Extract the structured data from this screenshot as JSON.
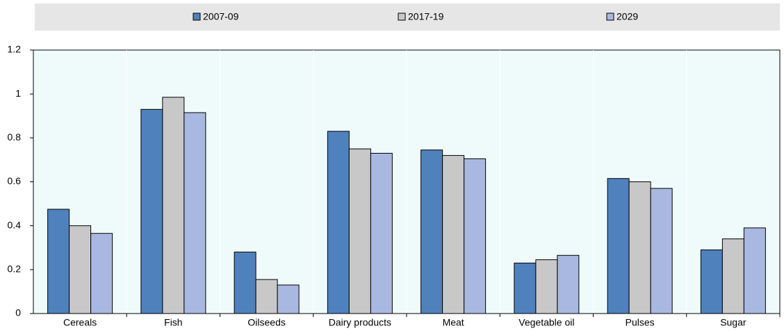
{
  "chart_data": {
    "type": "bar",
    "categories": [
      "Cereals",
      "Fish",
      "Oilseeds",
      "Dairy products",
      "Meat",
      "Vegetable oil",
      "Pulses",
      "Sugar"
    ],
    "series": [
      {
        "name": "2007-09",
        "color": "#4f81bd",
        "values": [
          0.475,
          0.93,
          0.28,
          0.83,
          0.745,
          0.23,
          0.615,
          0.29
        ]
      },
      {
        "name": "2017-19",
        "color": "#c8c8c8",
        "values": [
          0.4,
          0.985,
          0.155,
          0.75,
          0.72,
          0.245,
          0.6,
          0.34
        ]
      },
      {
        "name": "2029",
        "color": "#a9b8e0",
        "values": [
          0.365,
          0.915,
          0.13,
          0.73,
          0.705,
          0.265,
          0.57,
          0.39
        ]
      }
    ],
    "ylim": [
      0,
      1.2
    ],
    "yticks": [
      0,
      0.2,
      0.4,
      0.6,
      0.8,
      1,
      1.2
    ],
    "legend": "top"
  }
}
